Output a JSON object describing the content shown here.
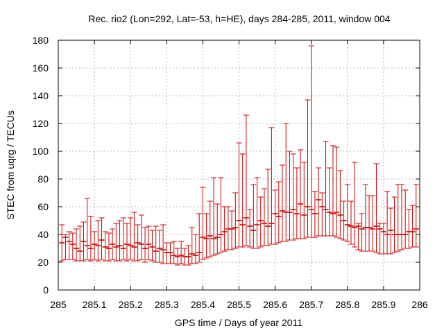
{
  "chart_data": {
    "type": "scatter",
    "title": "Rec. rio2 (Lon=292, Lat=-53, h=HE), days 284-285, 2011, window 004",
    "xlabel": "GPS time / Days of year 2011",
    "ylabel": "STEC from uqrg / TECUs",
    "xlim": [
      285,
      286
    ],
    "ylim": [
      0,
      180
    ],
    "xticks": [
      "285",
      "285.1",
      "285.2",
      "285.3",
      "285.4",
      "285.5",
      "285.6",
      "285.7",
      "285.8",
      "285.9",
      "286"
    ],
    "yticks": [
      "0",
      "20",
      "40",
      "60",
      "80",
      "100",
      "120",
      "140",
      "160",
      "180"
    ],
    "grid": true,
    "error_bars": true,
    "series_color": "#cc0000",
    "series": [
      {
        "x": [
          285.01,
          285.02,
          285.03,
          285.04,
          285.05,
          285.06,
          285.07,
          285.08,
          285.09,
          285.1,
          285.11,
          285.12,
          285.13,
          285.14,
          285.15,
          285.16,
          285.17,
          285.18,
          285.19,
          285.2,
          285.21,
          285.22,
          285.23,
          285.24,
          285.25,
          285.26,
          285.27,
          285.28,
          285.29,
          285.3,
          285.31,
          285.32,
          285.33,
          285.34,
          285.35,
          285.36,
          285.37,
          285.38,
          285.39,
          285.4,
          285.41,
          285.42,
          285.43,
          285.44,
          285.45,
          285.46,
          285.47,
          285.48,
          285.49,
          285.5,
          285.51,
          285.52,
          285.53,
          285.54,
          285.55,
          285.56,
          285.57,
          285.58,
          285.59,
          285.6,
          285.61,
          285.62,
          285.63,
          285.64,
          285.65,
          285.66,
          285.67,
          285.68,
          285.69,
          285.7,
          285.71,
          285.72,
          285.73,
          285.74,
          285.75,
          285.76,
          285.77,
          285.78,
          285.79,
          285.8,
          285.81,
          285.82,
          285.83,
          285.84,
          285.85,
          285.86,
          285.87,
          285.88,
          285.89,
          285.9,
          285.91,
          285.92,
          285.93,
          285.94,
          285.95,
          285.96,
          285.97,
          285.98,
          285.99
        ],
        "y": [
          34,
          38,
          35,
          33,
          30,
          28,
          35,
          32,
          30,
          33,
          32,
          36,
          31,
          30,
          33,
          31,
          32,
          30,
          33,
          32,
          31,
          34,
          33,
          30,
          33,
          31,
          28,
          30,
          29,
          27,
          27,
          25,
          24,
          25,
          24,
          24,
          26,
          25,
          27,
          38,
          37,
          39,
          37,
          38,
          40,
          42,
          44,
          44,
          45,
          50,
          47,
          52,
          46,
          43,
          47,
          50,
          48,
          46,
          48,
          55,
          53,
          57,
          56,
          56,
          58,
          55,
          62,
          54,
          60,
          58,
          55,
          65,
          60,
          58,
          56,
          55,
          56,
          54,
          50,
          47,
          46,
          45,
          46,
          44,
          45,
          45,
          44,
          46,
          44,
          42,
          40,
          43,
          40,
          40,
          40,
          40,
          42,
          42,
          44
        ],
        "y_low": [
          21,
          22,
          22,
          22,
          21,
          21,
          21,
          22,
          21,
          22,
          21,
          22,
          21,
          21,
          22,
          21,
          21,
          22,
          21,
          22,
          21,
          21,
          22,
          20,
          22,
          21,
          20,
          20,
          19,
          19,
          19,
          19,
          18,
          19,
          18,
          18,
          19,
          19,
          20,
          22,
          23,
          24,
          25,
          26,
          27,
          28,
          29,
          29,
          30,
          31,
          31,
          32,
          31,
          30,
          30,
          31,
          32,
          32,
          33,
          33,
          34,
          35,
          35,
          36,
          36,
          37,
          37,
          37,
          38,
          38,
          38,
          39,
          39,
          39,
          39,
          39,
          38,
          37,
          36,
          35,
          33,
          31,
          29,
          28,
          28,
          28,
          28,
          27,
          26,
          26,
          26,
          26,
          27,
          28,
          29,
          30,
          30,
          31,
          31
        ],
        "y_high": [
          47,
          40,
          42,
          41,
          44,
          46,
          49,
          66,
          53,
          42,
          50,
          52,
          42,
          41,
          44,
          48,
          50,
          52,
          48,
          52,
          56,
          47,
          54,
          45,
          46,
          43,
          46,
          43,
          47,
          34,
          34,
          35,
          30,
          35,
          30,
          32,
          45,
          40,
          55,
          74,
          55,
          64,
          81,
          62,
          81,
          60,
          60,
          57,
          70,
          106,
          98,
          126,
          58,
          76,
          81,
          67,
          73,
          87,
          117,
          72,
          78,
          90,
          120,
          100,
          98,
          88,
          101,
          92,
          137,
          176,
          71,
          88,
          70,
          107,
          88,
          104,
          103,
          86,
          64,
          76,
          64,
          92,
          48,
          55,
          76,
          68,
          68,
          91,
          48,
          48,
          71,
          59,
          67,
          76,
          76,
          72,
          58,
          61,
          76
        ]
      }
    ]
  }
}
